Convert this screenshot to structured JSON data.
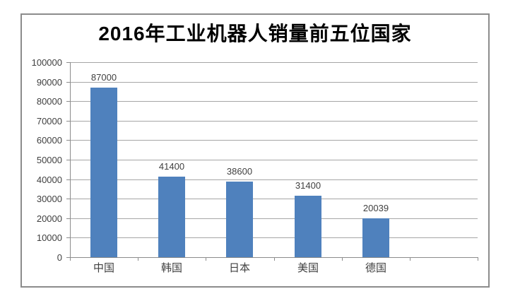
{
  "chart_data": {
    "type": "bar",
    "title": "2016年工业机器人销量前五位国家",
    "categories": [
      "中国",
      "韩国",
      "日本",
      "美国",
      "德国"
    ],
    "values": [
      87000,
      41400,
      38600,
      31400,
      20039
    ],
    "data_labels": [
      "87000",
      "41400",
      "38600",
      "31400",
      "20039"
    ],
    "xlabel": "",
    "ylabel": "",
    "ylim": [
      0,
      100000
    ],
    "y_tick_step": 10000,
    "y_tick_labels": [
      "0",
      "10000",
      "20000",
      "30000",
      "40000",
      "50000",
      "60000",
      "70000",
      "80000",
      "90000",
      "100000"
    ],
    "grid": true,
    "legend_position": "none",
    "empty_trailing_slots": 1,
    "colors": {
      "bar": "#4F81BD",
      "gridline": "#A6A6A6",
      "axis": "#8C8C8C",
      "frame_border": "#8C8C8C",
      "label_text": "#404040",
      "title_text": "#000000"
    }
  }
}
